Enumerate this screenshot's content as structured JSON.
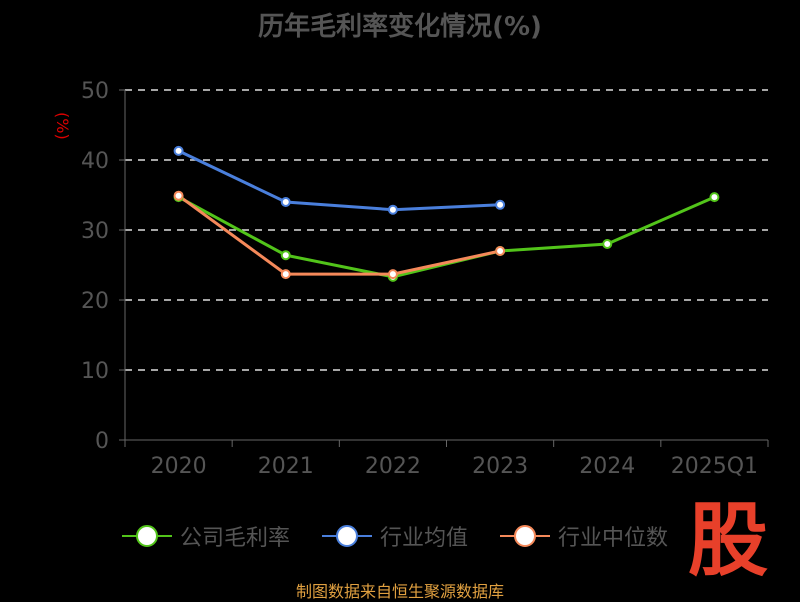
{
  "chart_data": {
    "type": "line",
    "title": "历年毛利率变化情况(%)",
    "ylabel": "(%)",
    "xlabel": "",
    "categories": [
      "2020",
      "2021",
      "2022",
      "2023",
      "2024",
      "2025Q1"
    ],
    "yticks": [
      "0",
      "10",
      "20",
      "30",
      "40",
      "50"
    ],
    "ylim": [
      0,
      50
    ],
    "grid": true,
    "legend_position": "bottom",
    "series": [
      {
        "name": "公司毛利率",
        "color": "#52c41a",
        "values": [
          34.7,
          26.4,
          23.3,
          27.0,
          28.0,
          34.7
        ]
      },
      {
        "name": "行业均值",
        "color": "#4a7fdc",
        "values": [
          41.3,
          34.0,
          32.9,
          33.6,
          null,
          null
        ]
      },
      {
        "name": "行业中位数",
        "color": "#f5895a",
        "values": [
          34.9,
          23.7,
          23.7,
          27.0,
          null,
          null
        ]
      }
    ]
  },
  "footer": "制图数据来自恒生聚源数据库",
  "logo": "股"
}
